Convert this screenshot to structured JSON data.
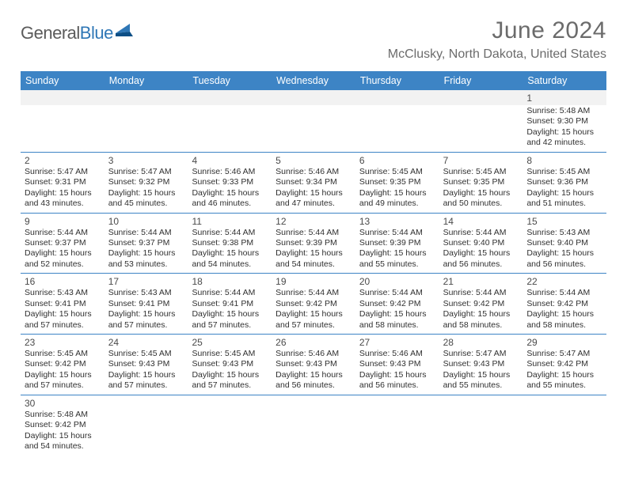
{
  "logo": {
    "general": "General",
    "blue": "Blue"
  },
  "title": "June 2024",
  "location": "McClusky, North Dakota, United States",
  "colors": {
    "header_bg": "#3d84c5",
    "header_text": "#ffffff",
    "title_text": "#6b6b6b",
    "body_text": "#303030",
    "row_border": "#3d84c5",
    "shade": "#f2f2f2",
    "logo_gray": "#5b5b5b",
    "logo_blue": "#2f77b6"
  },
  "day_headers": [
    "Sunday",
    "Monday",
    "Tuesday",
    "Wednesday",
    "Thursday",
    "Friday",
    "Saturday"
  ],
  "weeks": [
    [
      null,
      null,
      null,
      null,
      null,
      null,
      {
        "n": "1",
        "sr": "5:48 AM",
        "ss": "9:30 PM",
        "dl": "15 hours and 42 minutes."
      }
    ],
    [
      {
        "n": "2",
        "sr": "5:47 AM",
        "ss": "9:31 PM",
        "dl": "15 hours and 43 minutes."
      },
      {
        "n": "3",
        "sr": "5:47 AM",
        "ss": "9:32 PM",
        "dl": "15 hours and 45 minutes."
      },
      {
        "n": "4",
        "sr": "5:46 AM",
        "ss": "9:33 PM",
        "dl": "15 hours and 46 minutes."
      },
      {
        "n": "5",
        "sr": "5:46 AM",
        "ss": "9:34 PM",
        "dl": "15 hours and 47 minutes."
      },
      {
        "n": "6",
        "sr": "5:45 AM",
        "ss": "9:35 PM",
        "dl": "15 hours and 49 minutes."
      },
      {
        "n": "7",
        "sr": "5:45 AM",
        "ss": "9:35 PM",
        "dl": "15 hours and 50 minutes."
      },
      {
        "n": "8",
        "sr": "5:45 AM",
        "ss": "9:36 PM",
        "dl": "15 hours and 51 minutes."
      }
    ],
    [
      {
        "n": "9",
        "sr": "5:44 AM",
        "ss": "9:37 PM",
        "dl": "15 hours and 52 minutes."
      },
      {
        "n": "10",
        "sr": "5:44 AM",
        "ss": "9:37 PM",
        "dl": "15 hours and 53 minutes."
      },
      {
        "n": "11",
        "sr": "5:44 AM",
        "ss": "9:38 PM",
        "dl": "15 hours and 54 minutes."
      },
      {
        "n": "12",
        "sr": "5:44 AM",
        "ss": "9:39 PM",
        "dl": "15 hours and 54 minutes."
      },
      {
        "n": "13",
        "sr": "5:44 AM",
        "ss": "9:39 PM",
        "dl": "15 hours and 55 minutes."
      },
      {
        "n": "14",
        "sr": "5:44 AM",
        "ss": "9:40 PM",
        "dl": "15 hours and 56 minutes."
      },
      {
        "n": "15",
        "sr": "5:43 AM",
        "ss": "9:40 PM",
        "dl": "15 hours and 56 minutes."
      }
    ],
    [
      {
        "n": "16",
        "sr": "5:43 AM",
        "ss": "9:41 PM",
        "dl": "15 hours and 57 minutes."
      },
      {
        "n": "17",
        "sr": "5:43 AM",
        "ss": "9:41 PM",
        "dl": "15 hours and 57 minutes."
      },
      {
        "n": "18",
        "sr": "5:44 AM",
        "ss": "9:41 PM",
        "dl": "15 hours and 57 minutes."
      },
      {
        "n": "19",
        "sr": "5:44 AM",
        "ss": "9:42 PM",
        "dl": "15 hours and 57 minutes."
      },
      {
        "n": "20",
        "sr": "5:44 AM",
        "ss": "9:42 PM",
        "dl": "15 hours and 58 minutes."
      },
      {
        "n": "21",
        "sr": "5:44 AM",
        "ss": "9:42 PM",
        "dl": "15 hours and 58 minutes."
      },
      {
        "n": "22",
        "sr": "5:44 AM",
        "ss": "9:42 PM",
        "dl": "15 hours and 58 minutes."
      }
    ],
    [
      {
        "n": "23",
        "sr": "5:45 AM",
        "ss": "9:42 PM",
        "dl": "15 hours and 57 minutes."
      },
      {
        "n": "24",
        "sr": "5:45 AM",
        "ss": "9:43 PM",
        "dl": "15 hours and 57 minutes."
      },
      {
        "n": "25",
        "sr": "5:45 AM",
        "ss": "9:43 PM",
        "dl": "15 hours and 57 minutes."
      },
      {
        "n": "26",
        "sr": "5:46 AM",
        "ss": "9:43 PM",
        "dl": "15 hours and 56 minutes."
      },
      {
        "n": "27",
        "sr": "5:46 AM",
        "ss": "9:43 PM",
        "dl": "15 hours and 56 minutes."
      },
      {
        "n": "28",
        "sr": "5:47 AM",
        "ss": "9:43 PM",
        "dl": "15 hours and 55 minutes."
      },
      {
        "n": "29",
        "sr": "5:47 AM",
        "ss": "9:42 PM",
        "dl": "15 hours and 55 minutes."
      }
    ],
    [
      {
        "n": "30",
        "sr": "5:48 AM",
        "ss": "9:42 PM",
        "dl": "15 hours and 54 minutes."
      },
      null,
      null,
      null,
      null,
      null,
      null
    ]
  ],
  "labels": {
    "sunrise": "Sunrise:",
    "sunset": "Sunset:",
    "daylight": "Daylight:"
  }
}
